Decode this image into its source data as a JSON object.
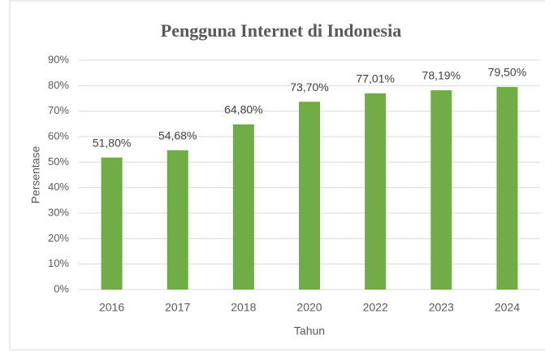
{
  "chart_data": {
    "type": "bar",
    "title": "Pengguna Internet di Indonesia",
    "x_label": "Tahun",
    "y_label": "Persentase",
    "categories": [
      "2016",
      "2017",
      "2018",
      "2020",
      "2022",
      "2023",
      "2024"
    ],
    "values": [
      51.8,
      54.68,
      64.8,
      73.7,
      77.01,
      78.19,
      79.5
    ],
    "value_labels": [
      "51,80%",
      "54,68%",
      "64,80%",
      "73,70%",
      "77,01%",
      "78,19%",
      "79,50%"
    ],
    "color": "#70ad47",
    "ylim": [
      0,
      90
    ],
    "yticks": [
      {
        "value": 0,
        "label": "0%"
      },
      {
        "value": 10,
        "label": "10%"
      },
      {
        "value": 20,
        "label": "20%"
      },
      {
        "value": 30,
        "label": "30%"
      },
      {
        "value": 40,
        "label": "40%"
      },
      {
        "value": 50,
        "label": "50%"
      },
      {
        "value": 60,
        "label": "60%"
      },
      {
        "value": 70,
        "label": "70%"
      },
      {
        "value": 80,
        "label": "80%"
      },
      {
        "value": 90,
        "label": "90%"
      }
    ],
    "grid": true
  }
}
